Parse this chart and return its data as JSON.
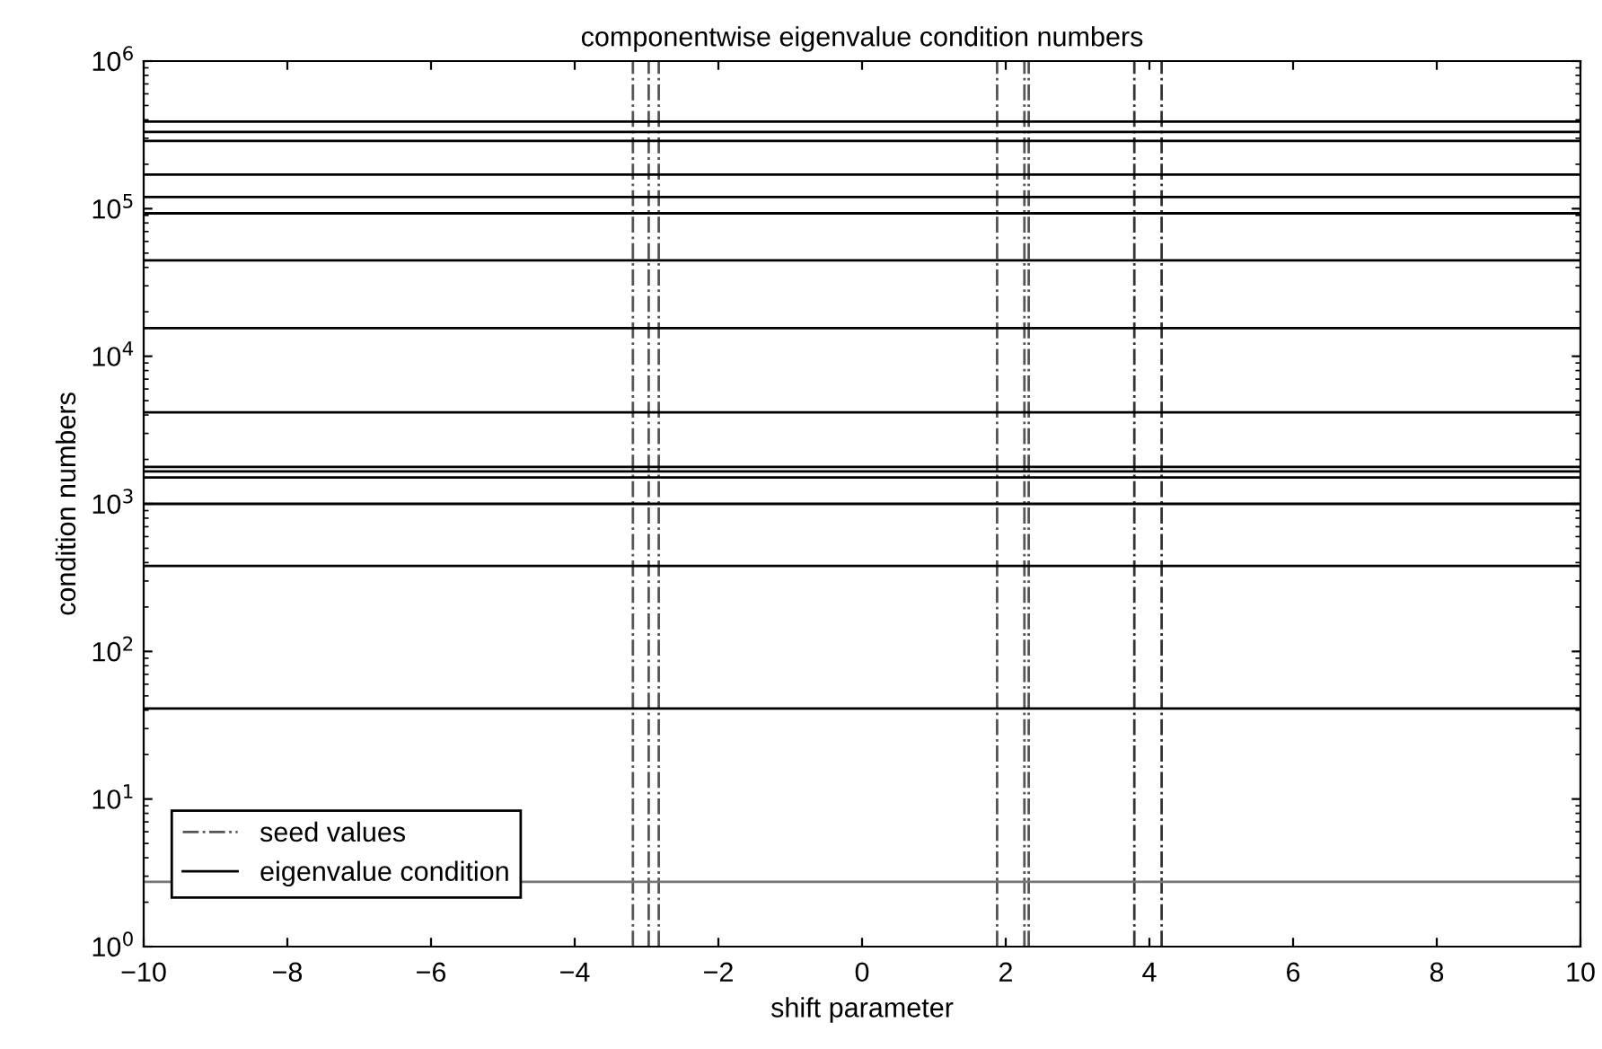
{
  "chart_data": {
    "type": "line",
    "title": "componentwise eigenvalue condition numbers",
    "xlabel": "shift parameter",
    "ylabel": "condition numbers",
    "log": "y",
    "grid": false,
    "legend": "bottom left",
    "marker": "none",
    "xlim": [
      -10,
      10
    ],
    "xticks": [
      {
        "value": -10,
        "label": "−10"
      },
      {
        "value": -8,
        "label": "−8"
      },
      {
        "value": -6,
        "label": "−6"
      },
      {
        "value": -4,
        "label": "−4"
      },
      {
        "value": -2,
        "label": "−2"
      },
      0,
      2,
      4,
      6,
      8,
      10
    ],
    "ylim": [
      1,
      1000000
    ],
    "yticks": [
      {
        "value": 1,
        "label": "10$^{0}$"
      },
      {
        "value": 10,
        "label": "10$^{1}$"
      },
      {
        "value": 100,
        "label": "10$^{2}$"
      },
      {
        "value": 1000,
        "label": "10$^{3}$"
      },
      {
        "value": 10000,
        "label": "10$^{4}$"
      },
      {
        "value": 100000,
        "label": "10$^{5}$"
      },
      {
        "value": 1000000,
        "label": "10$^{6}$"
      }
    ],
    "series": [
      {
        "name": "seed values",
        "color": "#555555",
        "line_style": "dashdot",
        "x": [
          -3.19,
          -3.19
        ],
        "values": [
          1,
          1000000
        ]
      },
      {
        "color": "#555555",
        "line_style": "dashdot",
        "x": [
          -2.97,
          -2.97
        ],
        "values": [
          1,
          1000000
        ]
      },
      {
        "color": "#555555",
        "line_style": "dashdot",
        "x": [
          -2.83,
          -2.83
        ],
        "values": [
          1,
          1000000
        ]
      },
      {
        "color": "#555555",
        "line_style": "dashdot",
        "x": [
          1.88,
          1.88
        ],
        "values": [
          1,
          1000000
        ]
      },
      {
        "color": "#555555",
        "line_style": "dashdot",
        "x": [
          2.26,
          2.26
        ],
        "values": [
          1,
          1000000
        ]
      },
      {
        "color": "#555555",
        "line_style": "dashdot",
        "x": [
          2.32,
          2.32
        ],
        "values": [
          1,
          1000000
        ]
      },
      {
        "color": "#333333",
        "line_style": "dashdot",
        "x": [
          3.79,
          3.79
        ],
        "values": [
          1,
          1000000
        ]
      },
      {
        "color": "#333333",
        "line_style": "dashdot",
        "x": [
          4.17,
          4.17
        ],
        "values": [
          1,
          1000000
        ]
      },
      {
        "name": "eigenvalue condition",
        "color": "#000000",
        "line_style": "solid",
        "x": [
          -10,
          10
        ],
        "values": [
          389000,
          389000
        ]
      },
      {
        "color": "#000000",
        "line_style": "solid",
        "x": [
          -10,
          10
        ],
        "values": [
          331000,
          331000
        ]
      },
      {
        "color": "#000000",
        "line_style": "solid",
        "x": [
          -10,
          10
        ],
        "values": [
          288000,
          288000
        ]
      },
      {
        "color": "#000000",
        "line_style": "solid",
        "x": [
          -10,
          10
        ],
        "values": [
          170000,
          170000
        ]
      },
      {
        "color": "#000000",
        "line_style": "solid",
        "x": [
          -10,
          10
        ],
        "values": [
          120000,
          120000
        ]
      },
      {
        "color": "#000000",
        "line_style": "solid",
        "x": [
          -10,
          10
        ],
        "values": [
          93000,
          93000
        ]
      },
      {
        "color": "#000000",
        "line_style": "solid",
        "x": [
          -10,
          10
        ],
        "values": [
          44700,
          44700
        ]
      },
      {
        "color": "#000000",
        "line_style": "solid",
        "x": [
          -10,
          10
        ],
        "values": [
          15500,
          15500
        ]
      },
      {
        "color": "#000000",
        "line_style": "solid",
        "x": [
          -10,
          10
        ],
        "values": [
          4170,
          4170
        ]
      },
      {
        "color": "#000000",
        "line_style": "solid",
        "x": [
          -10,
          10
        ],
        "values": [
          1780,
          1780
        ]
      },
      {
        "color": "#000000",
        "line_style": "solid",
        "x": [
          -10,
          10
        ],
        "values": [
          1660,
          1660
        ]
      },
      {
        "color": "#000000",
        "line_style": "solid",
        "x": [
          -10,
          10
        ],
        "values": [
          1510,
          1510
        ]
      },
      {
        "color": "#000000",
        "line_style": "solid",
        "x": [
          -10,
          10
        ],
        "values": [
          1000,
          1000
        ]
      },
      {
        "color": "#000000",
        "line_style": "solid",
        "x": [
          -10,
          10
        ],
        "values": [
          380,
          380
        ]
      },
      {
        "color": "#000000",
        "line_style": "solid",
        "x": [
          -10,
          10
        ],
        "values": [
          41,
          41
        ]
      },
      {
        "color": "#777777",
        "line_style": "solid",
        "x": [
          -10,
          10
        ],
        "values": [
          2.75,
          2.75
        ]
      }
    ]
  }
}
